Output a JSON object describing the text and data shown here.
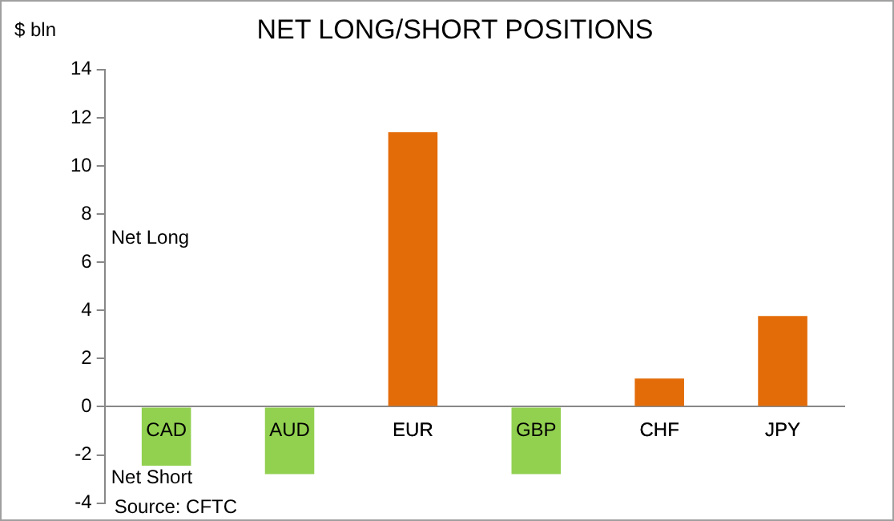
{
  "chart_data": {
    "type": "bar",
    "title": "NET LONG/SHORT POSITIONS",
    "ylabel": "$ bln",
    "categories": [
      "CAD",
      "AUD",
      "EUR",
      "GBP",
      "CHF",
      "JPY"
    ],
    "values": [
      -2.45,
      -2.8,
      11.4,
      -2.8,
      1.17,
      3.77
    ],
    "colors": [
      "#92d050",
      "#92d050",
      "#e36c09",
      "#92d050",
      "#e36c09",
      "#e36c09"
    ],
    "ylim": [
      -4,
      14
    ],
    "yticks": [
      -4,
      -2,
      0,
      2,
      4,
      6,
      8,
      10,
      12,
      14
    ],
    "grid": false,
    "legend": false,
    "annotations": [
      "Net Long",
      "Net Short",
      "Source: CFTC"
    ]
  }
}
